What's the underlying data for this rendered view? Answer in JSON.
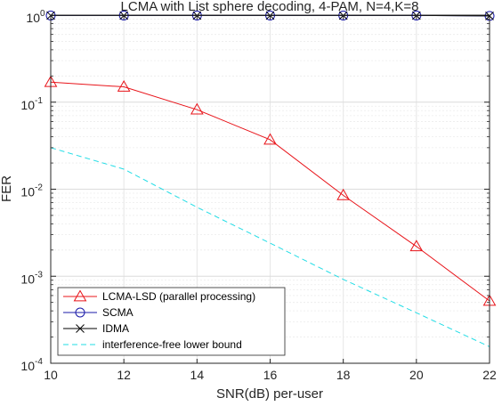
{
  "chart_data": {
    "type": "line",
    "title": "LCMA with List sphere decoding, 4-PAM, N=4,K=8",
    "xlabel": "SNR(dB) per-user",
    "ylabel": "FER",
    "xlim": [
      10,
      22
    ],
    "ylim": [
      0.0001,
      1
    ],
    "yscale": "log",
    "xticks": [
      "10",
      "12",
      "14",
      "16",
      "18",
      "20",
      "22"
    ],
    "yticks": [
      {
        "base": "10",
        "exp": "0"
      },
      {
        "base": "10",
        "exp": "-1"
      },
      {
        "base": "10",
        "exp": "-2"
      },
      {
        "base": "10",
        "exp": "-3"
      },
      {
        "base": "10",
        "exp": "-4"
      }
    ],
    "grid": true,
    "legend_position": "bottom-left",
    "series": [
      {
        "name": "LCMA-LSD (parallel processing)",
        "color": "#e8141a",
        "marker": "triangle",
        "dash": "solid",
        "x": [
          10,
          12,
          14,
          16,
          18,
          20,
          22
        ],
        "y": [
          0.17,
          0.15,
          0.082,
          0.037,
          0.0085,
          0.0022,
          0.00052
        ]
      },
      {
        "name": "SCMA",
        "color": "#1a1aa8",
        "marker": "circle",
        "dash": "solid",
        "x": [
          10,
          12,
          14,
          16,
          18,
          20,
          22
        ],
        "y": [
          0.99,
          0.99,
          0.99,
          0.99,
          0.99,
          0.99,
          0.98
        ]
      },
      {
        "name": "IDMA",
        "color": "#000000",
        "marker": "x",
        "dash": "solid",
        "x": [
          10,
          12,
          14,
          16,
          18,
          20,
          22
        ],
        "y": [
          0.99,
          0.99,
          0.99,
          0.99,
          0.99,
          0.99,
          0.98
        ]
      },
      {
        "name": "interference-free lower bound",
        "color": "#22dde6",
        "marker": "none",
        "dash": "dashed",
        "x": [
          10,
          12,
          14,
          16,
          18,
          20,
          22
        ],
        "y": [
          0.03,
          0.017,
          0.0062,
          0.0024,
          0.00092,
          0.00038,
          0.000155
        ]
      }
    ]
  }
}
